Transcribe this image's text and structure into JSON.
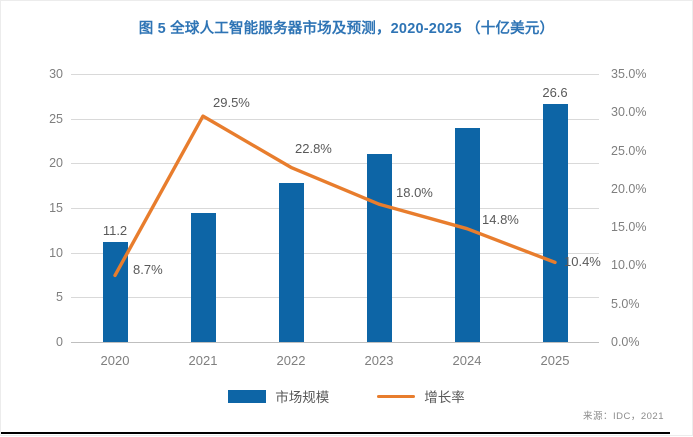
{
  "chart_data": {
    "type": "bar+line",
    "title": "图 5 全球人工智能服务器市场及预测，2020-2025 （十亿美元）",
    "categories": [
      "2020",
      "2021",
      "2022",
      "2023",
      "2024",
      "2025"
    ],
    "series": [
      {
        "name": "市场规模",
        "type": "bar",
        "axis": "left",
        "values": [
          11.2,
          14.4,
          17.8,
          21.0,
          24.0,
          26.6
        ],
        "point_labels": [
          "11.2",
          "",
          "",
          "",
          "",
          "26.6"
        ],
        "color": "#0D65A6"
      },
      {
        "name": "增长率",
        "type": "line",
        "axis": "right",
        "values": [
          8.7,
          29.5,
          22.8,
          18.0,
          14.8,
          10.4
        ],
        "point_labels": [
          "8.7%",
          "29.5%",
          "22.8%",
          "18.0%",
          "14.8%",
          "10.4%"
        ],
        "color": "#E87D2D"
      }
    ],
    "left_axis": {
      "min": 0,
      "max": 30,
      "step": 5,
      "ticks": [
        "0",
        "5",
        "10",
        "15",
        "20",
        "25",
        "30"
      ]
    },
    "right_axis": {
      "min": 0,
      "max": 35,
      "step": 5,
      "ticks": [
        "0.0%",
        "5.0%",
        "10.0%",
        "15.0%",
        "20.0%",
        "25.0%",
        "30.0%",
        "35.0%"
      ]
    },
    "grid": true,
    "legend": {
      "position": "bottom",
      "items": [
        "市场规模",
        "增长率"
      ]
    },
    "colors": {
      "bar": "#0D65A6",
      "line": "#E87D2D",
      "title": "#2E74B5",
      "grid": "#d9d9d9"
    }
  },
  "source": "来源：IDC，2021"
}
